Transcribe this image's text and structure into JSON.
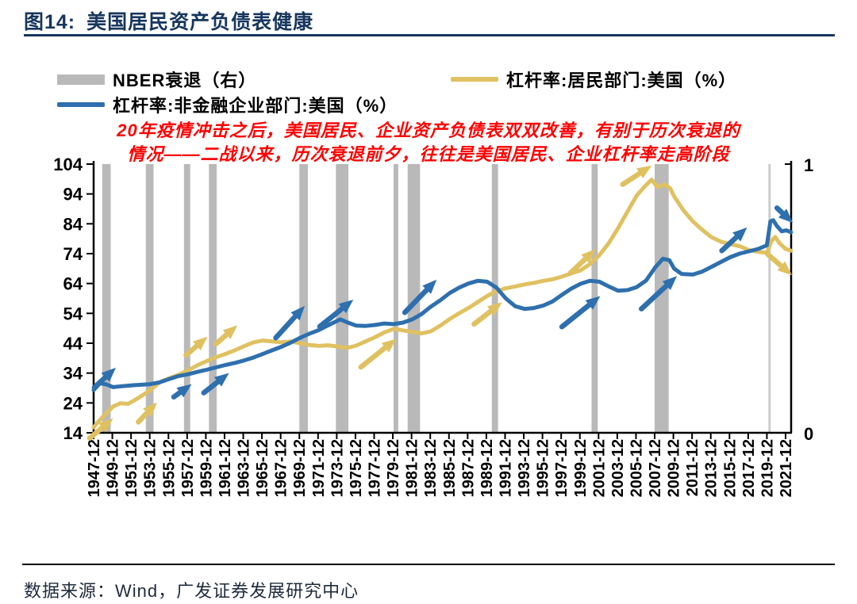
{
  "header": {
    "figure_label": "图14:",
    "title": "美国居民资产负债表健康"
  },
  "legend": {
    "recession": {
      "label": "NBER衰退（右）",
      "color": "#b9b9b9"
    },
    "household": {
      "label": "杠杆率:居民部门:美国（%）",
      "color": "#e0c161"
    },
    "corporate": {
      "label": "杠杆率:非金融企业部门:美国（%）",
      "color": "#2e6fae"
    }
  },
  "annotation": {
    "color": "#ff0000",
    "line1": "20年疫情冲击之后，美国居民、企业资产负债表双双改善，有别于历次衰退的",
    "line2": "情况——二战以来，历次衰退前夕，往往是美国居民、企业杠杆率走高阶段"
  },
  "source": "数据来源：Wind，广发证券发展研究中心",
  "chart_data": {
    "type": "line",
    "title": "美国居民资产负债表健康",
    "left_axis": {
      "min": 14,
      "max": 104,
      "ticks": [
        14,
        24,
        34,
        44,
        54,
        64,
        74,
        84,
        94,
        104
      ]
    },
    "right_axis": {
      "min": 0,
      "max": 1,
      "ticks": [
        0,
        1
      ],
      "note": "NBER衰退（右）"
    },
    "x_tick_labels": [
      "1947-12",
      "1949-12",
      "1951-12",
      "1953-12",
      "1955-12",
      "1957-12",
      "1959-12",
      "1961-12",
      "1963-12",
      "1965-12",
      "1967-12",
      "1969-12",
      "1971-12",
      "1973-12",
      "1975-12",
      "1977-12",
      "1979-12",
      "1981-12",
      "1983-12",
      "1985-12",
      "1987-12",
      "1989-12",
      "1991-12",
      "1993-12",
      "1995-12",
      "1997-12",
      "1999-12",
      "2001-12",
      "2003-12",
      "2005-12",
      "2007-12",
      "2009-12",
      "2011-12",
      "2013-12",
      "2015-12",
      "2017-12",
      "2019-12",
      "2021-12"
    ],
    "x_start_year": 1947.92,
    "x_tick_step_years": 2,
    "grid": false,
    "legend_position": "top",
    "recessions": [
      {
        "start": 1948.83,
        "end": 1949.75
      },
      {
        "start": 1953.5,
        "end": 1954.33
      },
      {
        "start": 1957.58,
        "end": 1958.25
      },
      {
        "start": 1960.25,
        "end": 1961.08
      },
      {
        "start": 1969.92,
        "end": 1970.83
      },
      {
        "start": 1973.83,
        "end": 1975.17
      },
      {
        "start": 1980.0,
        "end": 1980.5
      },
      {
        "start": 1981.5,
        "end": 1982.83
      },
      {
        "start": 1990.5,
        "end": 1991.17
      },
      {
        "start": 2001.17,
        "end": 2001.83
      },
      {
        "start": 2007.92,
        "end": 2009.42
      },
      {
        "start": 2020.08,
        "end": 2020.33,
        "light": true
      }
    ],
    "series": [
      {
        "name": "杠杆率:居民部门:美国（%）",
        "color": "#e0c161",
        "points": [
          [
            1947.92,
            15.8
          ],
          [
            1948.5,
            18.0
          ],
          [
            1949.3,
            20.6
          ],
          [
            1950,
            22.8
          ],
          [
            1950.8,
            23.9
          ],
          [
            1951.6,
            23.7
          ],
          [
            1952.3,
            24.9
          ],
          [
            1953,
            26.3
          ],
          [
            1954,
            28.3
          ],
          [
            1955,
            31.0
          ],
          [
            1956,
            32.3
          ],
          [
            1957,
            33.4
          ],
          [
            1958,
            34.9
          ],
          [
            1959,
            36.6
          ],
          [
            1960,
            38.0
          ],
          [
            1961,
            39.3
          ],
          [
            1962,
            40.4
          ],
          [
            1963,
            41.6
          ],
          [
            1964,
            43.0
          ],
          [
            1965,
            44.3
          ],
          [
            1966,
            44.9
          ],
          [
            1967,
            44.6
          ],
          [
            1968,
            44.3
          ],
          [
            1969,
            44.6
          ],
          [
            1970,
            44.0
          ],
          [
            1971,
            43.4
          ],
          [
            1972,
            43.1
          ],
          [
            1973,
            43.3
          ],
          [
            1974,
            42.9
          ],
          [
            1975,
            42.4
          ],
          [
            1976,
            43.2
          ],
          [
            1977,
            44.6
          ],
          [
            1978,
            46.0
          ],
          [
            1979,
            47.6
          ],
          [
            1980,
            48.8
          ],
          [
            1981,
            48.3
          ],
          [
            1982,
            47.8
          ],
          [
            1983,
            47.3
          ],
          [
            1984,
            48.0
          ],
          [
            1985,
            49.9
          ],
          [
            1986,
            52.1
          ],
          [
            1987,
            54.0
          ],
          [
            1988,
            55.8
          ],
          [
            1989,
            57.8
          ],
          [
            1990,
            59.8
          ],
          [
            1991,
            61.5
          ],
          [
            1992,
            62.4
          ],
          [
            1993,
            63.0
          ],
          [
            1994,
            63.7
          ],
          [
            1995,
            64.2
          ],
          [
            1996,
            64.9
          ],
          [
            1997,
            65.4
          ],
          [
            1998,
            66.3
          ],
          [
            1999,
            67.4
          ],
          [
            2000,
            68.4
          ],
          [
            2001,
            70.5
          ],
          [
            2002,
            73.5
          ],
          [
            2003,
            77.5
          ],
          [
            2004,
            82.5
          ],
          [
            2005,
            88.0
          ],
          [
            2006,
            93.5
          ],
          [
            2007,
            97.0
          ],
          [
            2007.6,
            98.8
          ],
          [
            2008.2,
            96.3
          ],
          [
            2009,
            97.2
          ],
          [
            2009.6,
            95.8
          ],
          [
            2010,
            93.2
          ],
          [
            2011,
            88.5
          ],
          [
            2012,
            84.8
          ],
          [
            2013,
            82.0
          ],
          [
            2014,
            79.5
          ],
          [
            2015,
            78.0
          ],
          [
            2016,
            77.2
          ],
          [
            2017,
            76.5
          ],
          [
            2018,
            75.2
          ],
          [
            2019,
            74.6
          ],
          [
            2019.92,
            74.3
          ],
          [
            2020.4,
            78.2
          ],
          [
            2020.8,
            79.6
          ],
          [
            2021.3,
            77.4
          ],
          [
            2021.92,
            75.6
          ],
          [
            2022.5,
            75.0
          ]
        ]
      },
      {
        "name": "杠杆率:非金融企业部门:美国（%）",
        "color": "#2e6fae",
        "points": [
          [
            1947.92,
            28.3
          ],
          [
            1948.6,
            30.6
          ],
          [
            1949.3,
            30.2
          ],
          [
            1950,
            29.3
          ],
          [
            1951,
            29.6
          ],
          [
            1952,
            29.9
          ],
          [
            1953,
            30.1
          ],
          [
            1954,
            30.3
          ],
          [
            1955,
            30.9
          ],
          [
            1956,
            32.0
          ],
          [
            1957,
            33.0
          ],
          [
            1958,
            33.6
          ],
          [
            1959,
            34.4
          ],
          [
            1960,
            35.1
          ],
          [
            1961,
            35.9
          ],
          [
            1962,
            36.7
          ],
          [
            1963,
            37.4
          ],
          [
            1964,
            38.2
          ],
          [
            1965,
            39.2
          ],
          [
            1966,
            40.4
          ],
          [
            1967,
            41.6
          ],
          [
            1968,
            42.8
          ],
          [
            1969,
            44.2
          ],
          [
            1970,
            45.8
          ],
          [
            1971,
            47.2
          ],
          [
            1972,
            48.4
          ],
          [
            1973,
            50.0
          ],
          [
            1974.3,
            52.0
          ],
          [
            1975.2,
            50.8
          ],
          [
            1976,
            49.9
          ],
          [
            1977,
            49.8
          ],
          [
            1978,
            50.1
          ],
          [
            1979,
            50.6
          ],
          [
            1980,
            50.4
          ],
          [
            1981,
            50.9
          ],
          [
            1982,
            52.0
          ],
          [
            1983,
            53.8
          ],
          [
            1984,
            56.3
          ],
          [
            1985,
            58.4
          ],
          [
            1986,
            60.8
          ],
          [
            1987,
            62.6
          ],
          [
            1988,
            64.0
          ],
          [
            1989,
            64.9
          ],
          [
            1990,
            64.6
          ],
          [
            1991,
            62.6
          ],
          [
            1992,
            59.0
          ],
          [
            1993,
            56.4
          ],
          [
            1994,
            55.5
          ],
          [
            1995,
            55.8
          ],
          [
            1996,
            56.6
          ],
          [
            1997,
            58.0
          ],
          [
            1998,
            60.2
          ],
          [
            1999,
            62.3
          ],
          [
            2000,
            63.9
          ],
          [
            2001,
            64.9
          ],
          [
            2002,
            64.6
          ],
          [
            2003,
            63.0
          ],
          [
            2004,
            61.6
          ],
          [
            2005,
            61.8
          ],
          [
            2006,
            62.8
          ],
          [
            2007,
            65.0
          ],
          [
            2008,
            69.5
          ],
          [
            2008.8,
            72.3
          ],
          [
            2009.5,
            71.8
          ],
          [
            2010,
            69.0
          ],
          [
            2010.8,
            67.2
          ],
          [
            2012,
            67.0
          ],
          [
            2013,
            68.0
          ],
          [
            2014,
            69.6
          ],
          [
            2015,
            71.2
          ],
          [
            2016,
            72.8
          ],
          [
            2017,
            74.0
          ],
          [
            2018,
            74.8
          ],
          [
            2019,
            75.6
          ],
          [
            2019.92,
            76.8
          ],
          [
            2020.3,
            84.8
          ],
          [
            2020.6,
            85.2
          ],
          [
            2021,
            83.2
          ],
          [
            2021.5,
            81.5
          ],
          [
            2022,
            81.8
          ],
          [
            2022.5,
            81.2
          ]
        ]
      }
    ],
    "arrows": [
      {
        "color": "#2e6fae",
        "from": [
          1948.0,
          29.2
        ],
        "to": [
          1950.3,
          35.8
        ]
      },
      {
        "color": "#2e6fae",
        "from": [
          1956.5,
          26.0
        ],
        "to": [
          1958.4,
          30.3
        ]
      },
      {
        "color": "#2e6fae",
        "from": [
          1959.7,
          27.4
        ],
        "to": [
          1962.4,
          34.0
        ]
      },
      {
        "color": "#2e6fae",
        "from": [
          1967.4,
          45.8
        ],
        "to": [
          1970.5,
          56.5
        ]
      },
      {
        "color": "#2e6fae",
        "from": [
          1972.1,
          49.6
        ],
        "to": [
          1975.7,
          58.6
        ]
      },
      {
        "color": "#2e6fae",
        "from": [
          1981.2,
          54.3
        ],
        "to": [
          1984.6,
          65.3
        ]
      },
      {
        "color": "#2e6fae",
        "from": [
          1998.0,
          49.5
        ],
        "to": [
          2002.1,
          59.8
        ]
      },
      {
        "color": "#2e6fae",
        "from": [
          2006.5,
          55.5
        ],
        "to": [
          2010.3,
          66.5
        ]
      },
      {
        "color": "#2e6fae",
        "from": [
          2015.1,
          75.0
        ],
        "to": [
          2017.8,
          82.8
        ]
      },
      {
        "color": "#2e6fae",
        "from": [
          2021.0,
          89.3
        ],
        "to": [
          2022.7,
          84.3
        ]
      },
      {
        "color": "#e0c161",
        "from": [
          1947.5,
          12.2
        ],
        "to": [
          1950.0,
          18.8
        ]
      },
      {
        "color": "#e0c161",
        "from": [
          1952.7,
          17.6
        ],
        "to": [
          1954.7,
          24.2
        ]
      },
      {
        "color": "#e0c161",
        "from": [
          1957.8,
          40.0
        ],
        "to": [
          1960.1,
          46.2
        ]
      },
      {
        "color": "#e0c161",
        "from": [
          1961.0,
          43.8
        ],
        "to": [
          1963.3,
          50.0
        ]
      },
      {
        "color": "#e0c161",
        "from": [
          1976.5,
          36.0
        ],
        "to": [
          1980.3,
          45.5
        ]
      },
      {
        "color": "#e0c161",
        "from": [
          1988.6,
          50.4
        ],
        "to": [
          1991.6,
          57.7
        ]
      },
      {
        "color": "#e0c161",
        "from": [
          1998.9,
          67.5
        ],
        "to": [
          2001.6,
          75.5
        ]
      },
      {
        "color": "#e0c161",
        "from": [
          2004.5,
          97.2
        ],
        "to": [
          2007.6,
          103.5
        ]
      },
      {
        "color": "#e0c161",
        "from": [
          2020.0,
          73.8
        ],
        "to": [
          2022.6,
          66.8
        ]
      }
    ],
    "band_color": "#b9b9b9",
    "band_color_light": "#cccccc"
  }
}
